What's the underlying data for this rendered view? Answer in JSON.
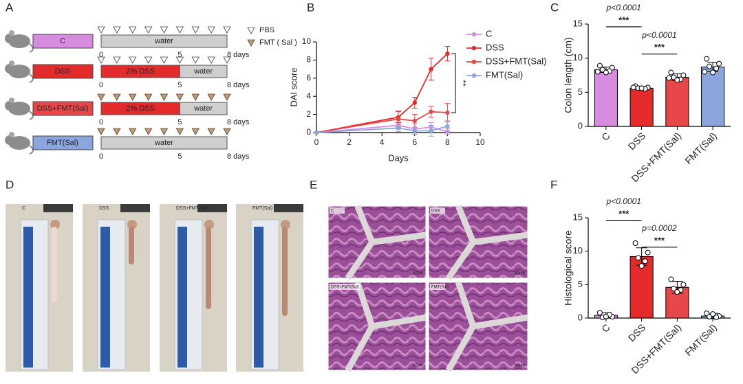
{
  "panel_labels": [
    "A",
    "B",
    "C",
    "D",
    "E",
    "F"
  ],
  "schematic": {
    "legend": [
      {
        "label": "PBS",
        "color": "#ffffff"
      },
      {
        "label": "FMT ( Sal )",
        "color": "#c89a6a"
      }
    ],
    "rows": [
      {
        "group": "C",
        "color": "#d68de0",
        "marker_color": "#ffffff",
        "segments": [
          {
            "label": "water",
            "color": "#cfcfcf"
          }
        ]
      },
      {
        "group": "DSS",
        "color": "#e42b2b",
        "marker_color": "#ffffff",
        "segments": [
          {
            "label": "2% DSS",
            "color": "#e42b2b"
          },
          {
            "label": "water",
            "color": "#cfcfcf"
          }
        ]
      },
      {
        "group": "DSS+FMT(Sal)",
        "color": "#e8474a",
        "marker_color": "#c89a6a",
        "segments": [
          {
            "label": "2% DSS",
            "color": "#e42b2b"
          },
          {
            "label": "water",
            "color": "#cfcfcf"
          }
        ]
      },
      {
        "group": "FMT(Sal)",
        "color": "#8aa6dd",
        "marker_color": "#c89a6a",
        "segments": [
          {
            "label": "water",
            "color": "#cfcfcf"
          }
        ]
      }
    ],
    "axis_labels": [
      "0",
      "5",
      "8 days"
    ]
  },
  "chart_data": [
    {
      "type": "line",
      "xlabel": "Days",
      "ylabel": "DAI score",
      "x": [
        0,
        5,
        6,
        7,
        8
      ],
      "xlim": [
        0,
        10
      ],
      "xticks": [
        0,
        2,
        4,
        6,
        8,
        10
      ],
      "ylim": [
        0,
        10
      ],
      "yticks": [
        0,
        2,
        4,
        6,
        8,
        10
      ],
      "series": [
        {
          "name": "C",
          "color": "#d68de0",
          "values": [
            0,
            0.8,
            0.4,
            0.6,
            0.1
          ],
          "errors": [
            0,
            0.4,
            0.6,
            0.5,
            0.3
          ]
        },
        {
          "name": "DSS",
          "color": "#e42b2b",
          "values": [
            0,
            1.7,
            3.3,
            7.0,
            8.7
          ],
          "errors": [
            0,
            0.6,
            0.6,
            1.2,
            0.8
          ]
        },
        {
          "name": "DSS+FMT(Sal)",
          "color": "#e8474a",
          "values": [
            0,
            1.5,
            1.3,
            2.3,
            2.2
          ],
          "errors": [
            0,
            0.9,
            0.7,
            0.6,
            1.0
          ]
        },
        {
          "name": "FMT(Sal)",
          "color": "#8aa6dd",
          "values": [
            0,
            0.5,
            0.2,
            0.2,
            0.7
          ],
          "errors": [
            0,
            0.4,
            0.4,
            0.6,
            0.6
          ]
        }
      ],
      "annotation": "**"
    },
    {
      "type": "bar",
      "ylabel": "Colon length (cm)",
      "categories": [
        "C",
        "DSS",
        "DSS+FMT(Sal)",
        "FMT(Sal)"
      ],
      "values": [
        8.3,
        5.6,
        7.2,
        8.7
      ],
      "errors": [
        0.4,
        0.2,
        0.5,
        0.7
      ],
      "colors": [
        "#d68de0",
        "#e42b2b",
        "#e8474a",
        "#8aa6dd"
      ],
      "points": [
        [
          8.9,
          8.6,
          8.3,
          8.1,
          7.9,
          8.0
        ],
        [
          5.9,
          5.7,
          5.6,
          5.5,
          5.6,
          5.7
        ],
        [
          7.9,
          7.5,
          7.2,
          6.9,
          6.8,
          7.1
        ],
        [
          9.9,
          9.2,
          8.8,
          8.5,
          7.9,
          8.0
        ]
      ],
      "ylim": [
        0,
        15
      ],
      "yticks": [
        0,
        5,
        10,
        15
      ],
      "annotations": [
        {
          "p": "p<0.0001",
          "stars": "***"
        },
        {
          "p": "p<0.0001",
          "stars": "***"
        }
      ]
    },
    {
      "type": "bar",
      "ylabel": "Histological score",
      "categories": [
        "C",
        "DSS",
        "DSS+FMT(Sal)",
        "FMT(Sal)"
      ],
      "values": [
        0.4,
        9.2,
        4.6,
        0.3
      ],
      "errors": [
        0.4,
        1.3,
        0.9,
        0.4
      ],
      "colors": [
        "#d68de0",
        "#e42b2b",
        "#e8474a",
        "#8aa6dd"
      ],
      "points": [
        [
          0.8,
          0.2,
          0.1,
          0.5,
          0.2
        ],
        [
          11.2,
          9.8,
          9.0,
          8.5,
          7.8
        ],
        [
          5.8,
          5.0,
          4.4,
          4.2,
          3.9
        ],
        [
          0.7,
          0.3,
          0.2,
          0.1,
          0.6
        ]
      ],
      "ylim": [
        0,
        15
      ],
      "yticks": [
        0,
        5,
        10,
        15
      ],
      "annotations": [
        {
          "p": "p<0.0001",
          "stars": "***"
        },
        {
          "p": "p=0.0002",
          "stars": "***"
        }
      ]
    }
  ],
  "photos": {
    "labels": [
      "C",
      "DSS",
      "DSS+FMT(Sal)",
      "FMT(Sal)"
    ]
  },
  "histology": {
    "labels": [
      "C",
      "DSS",
      "DSS+FMT(Sal)",
      "FMT(Sal)"
    ],
    "scale": "50um"
  }
}
